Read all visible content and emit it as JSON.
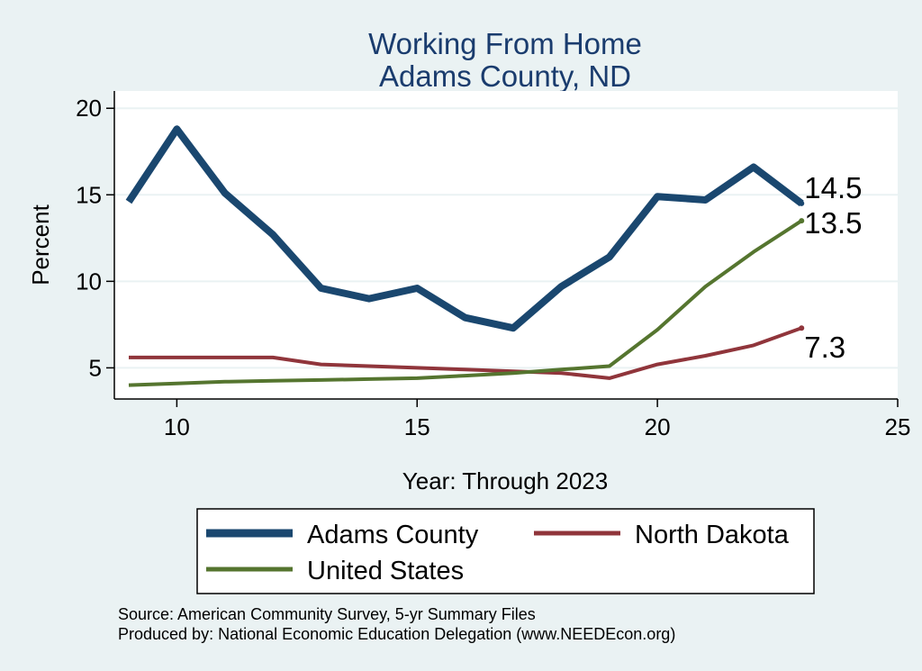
{
  "chart_data": {
    "type": "line",
    "title": "Working From Home",
    "subtitle": "Adams County, ND",
    "xlabel": "Year: Through 2023",
    "ylabel": "Percent",
    "xlim": [
      8.7,
      25
    ],
    "ylim": [
      3.2,
      21
    ],
    "xticks": [
      10,
      15,
      20,
      25
    ],
    "yticks": [
      5,
      10,
      15,
      20
    ],
    "grid": true,
    "legend_position": "bottom",
    "x": [
      9,
      10,
      11,
      12,
      13,
      14,
      15,
      16,
      17,
      18,
      19,
      20,
      21,
      22,
      23
    ],
    "series": [
      {
        "name": "Adams County",
        "color": "#1a476f",
        "values": [
          14.6,
          18.8,
          15.1,
          12.7,
          9.6,
          9.0,
          9.6,
          7.9,
          7.3,
          9.7,
          11.4,
          14.9,
          14.7,
          16.6,
          14.5
        ],
        "end_label": "14.5"
      },
      {
        "name": "North Dakota",
        "color": "#90353b",
        "values": [
          5.6,
          5.6,
          5.6,
          5.6,
          5.2,
          5.1,
          5.0,
          4.9,
          4.8,
          4.7,
          4.4,
          5.2,
          5.7,
          6.3,
          7.3
        ],
        "end_label": "7.3"
      },
      {
        "name": "United States",
        "color": "#55752f",
        "values": [
          4.0,
          4.1,
          4.2,
          4.25,
          4.3,
          4.35,
          4.4,
          4.55,
          4.7,
          4.9,
          5.1,
          7.2,
          9.7,
          11.7,
          13.5
        ],
        "end_label": "13.5"
      }
    ]
  },
  "source_note": "Source: American Community Survey, 5-yr Summary Files",
  "produced_note": "Produced by: National Economic Education Delegation (www.NEEDEcon.org)"
}
